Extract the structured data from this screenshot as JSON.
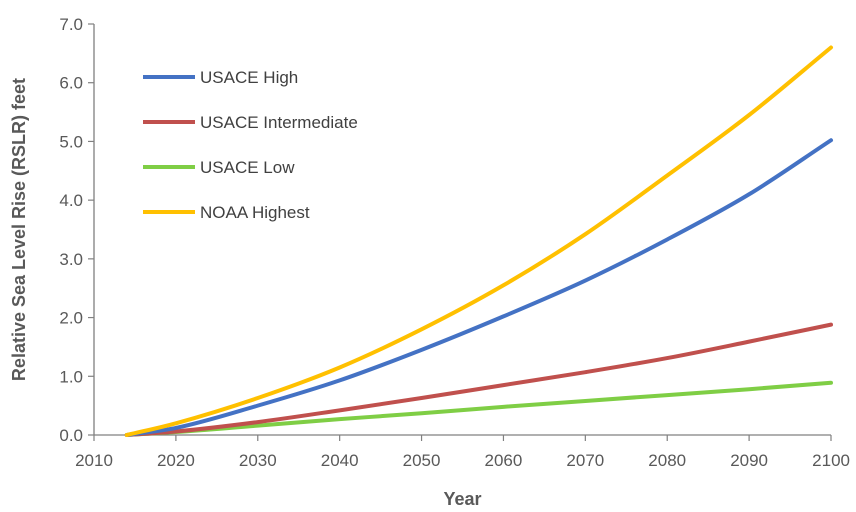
{
  "chart_data": {
    "type": "line",
    "title": "",
    "xlabel": "Year",
    "ylabel": "Relative Sea Level Rise (RSLR) feet",
    "xlim": [
      2010,
      2100
    ],
    "ylim": [
      0,
      7
    ],
    "xticks": [
      "2010",
      "2020",
      "2030",
      "2040",
      "2050",
      "2060",
      "2070",
      "2080",
      "2090",
      "2100"
    ],
    "yticks": [
      "0.0",
      "1.0",
      "2.0",
      "3.0",
      "4.0",
      "5.0",
      "6.0",
      "7.0"
    ],
    "grid": false,
    "legend": "top-left",
    "series": [
      {
        "name": "USACE High",
        "color": "#4472C4",
        "x": [
          2014,
          2020,
          2030,
          2040,
          2050,
          2060,
          2070,
          2080,
          2090,
          2100
        ],
        "y": [
          0.0,
          0.12,
          0.5,
          0.93,
          1.45,
          2.02,
          2.63,
          3.33,
          4.1,
          5.02
        ]
      },
      {
        "name": "USACE Intermediate",
        "color": "#C0504D",
        "x": [
          2014,
          2020,
          2030,
          2040,
          2050,
          2060,
          2070,
          2080,
          2090,
          2100
        ],
        "y": [
          0.0,
          0.06,
          0.22,
          0.42,
          0.63,
          0.85,
          1.07,
          1.31,
          1.59,
          1.88
        ]
      },
      {
        "name": "USACE Low",
        "color": "#7FCE45",
        "x": [
          2014,
          2020,
          2030,
          2040,
          2050,
          2060,
          2070,
          2080,
          2090,
          2100
        ],
        "y": [
          0.0,
          0.05,
          0.16,
          0.27,
          0.37,
          0.48,
          0.58,
          0.68,
          0.78,
          0.89
        ]
      },
      {
        "name": "NOAA Highest",
        "color": "#FFC000",
        "x": [
          2014,
          2020,
          2030,
          2040,
          2050,
          2060,
          2070,
          2080,
          2090,
          2100
        ],
        "y": [
          0.0,
          0.2,
          0.63,
          1.15,
          1.8,
          2.55,
          3.42,
          4.42,
          5.45,
          6.6
        ]
      }
    ]
  }
}
